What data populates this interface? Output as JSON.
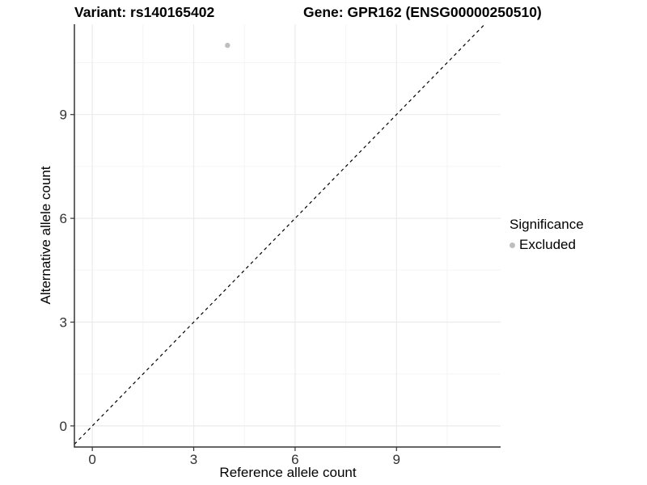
{
  "chart_data": {
    "type": "scatter",
    "title_left": "Variant: rs140165402",
    "title_right": "Gene: GPR162 (ENSG00000250510)",
    "xlabel": "Reference allele count",
    "ylabel": "Alternative allele count",
    "x_ticks": [
      0,
      3,
      6,
      9
    ],
    "y_ticks": [
      0,
      3,
      6,
      9
    ],
    "x_minor_ticks": [
      1.5,
      4.5,
      7.5,
      10.5
    ],
    "y_minor_ticks": [
      1.5,
      4.5,
      7.5,
      10.5
    ],
    "xlim": [
      -0.53,
      12.08
    ],
    "ylim": [
      -0.61,
      11.61
    ],
    "grid": true,
    "points": [
      {
        "x": 4,
        "y": 11,
        "significance": "Excluded"
      }
    ],
    "identity_line": {
      "slope": 1,
      "intercept": 0,
      "style": "dashed"
    },
    "legend": {
      "title": "Significance",
      "position": "right",
      "entries": [
        {
          "label": "Excluded",
          "color": "#bebebe"
        }
      ]
    },
    "colors": {
      "background": "#ffffff",
      "point": "#bebebe",
      "axis_line": "#333333",
      "tick_mark": "#333333",
      "tick_label": "#333333",
      "grid_major": "#ebebeb",
      "grid_minor": "#f5f5f5",
      "dashed_line": "#000000",
      "title_text": "#000000"
    }
  }
}
